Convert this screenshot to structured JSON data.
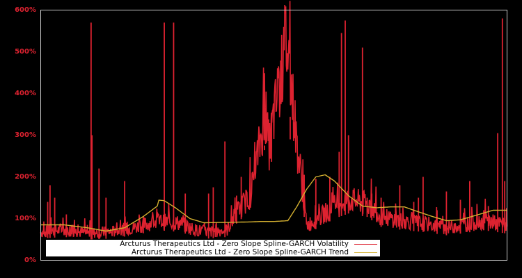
{
  "chart_data": {
    "type": "line",
    "title": "",
    "xlabel": "",
    "ylabel": "",
    "ylim": [
      0,
      600
    ],
    "yticks": [
      "0%",
      "100%",
      "200%",
      "300%",
      "400%",
      "500%",
      "600%"
    ],
    "grid": false,
    "legend_position": "bottom-left inside",
    "background": "#000000",
    "series": [
      {
        "name": "Arcturus Therapeutics Ltd - Zero Slope Spline-GARCH Volatility",
        "color": "#dd2230",
        "baseline": [
          [
            0,
            65
          ],
          [
            0.05,
            70
          ],
          [
            0.1,
            62
          ],
          [
            0.15,
            65
          ],
          [
            0.2,
            75
          ],
          [
            0.25,
            90
          ],
          [
            0.3,
            85
          ],
          [
            0.33,
            70
          ],
          [
            0.36,
            65
          ],
          [
            0.4,
            70
          ],
          [
            0.42,
            110
          ],
          [
            0.45,
            150
          ],
          [
            0.47,
            270
          ],
          [
            0.48,
            330
          ],
          [
            0.49,
            260
          ],
          [
            0.5,
            330
          ],
          [
            0.52,
            450
          ],
          [
            0.525,
            515
          ],
          [
            0.535,
            430
          ],
          [
            0.55,
            260
          ],
          [
            0.56,
            180
          ],
          [
            0.57,
            80
          ],
          [
            0.6,
            100
          ],
          [
            0.63,
            125
          ],
          [
            0.66,
            140
          ],
          [
            0.7,
            130
          ],
          [
            0.73,
            100
          ],
          [
            0.78,
            90
          ],
          [
            0.82,
            85
          ],
          [
            0.87,
            75
          ],
          [
            0.9,
            80
          ],
          [
            0.95,
            90
          ],
          [
            1,
            80
          ]
        ],
        "spikes": [
          [
            0.015,
            140
          ],
          [
            0.02,
            180
          ],
          [
            0.03,
            150
          ],
          [
            0.055,
            110
          ],
          [
            0.11,
            300
          ],
          [
            0.108,
            570
          ],
          [
            0.125,
            220
          ],
          [
            0.14,
            150
          ],
          [
            0.18,
            190
          ],
          [
            0.22,
            105
          ],
          [
            0.265,
            570
          ],
          [
            0.285,
            570
          ],
          [
            0.31,
            160
          ],
          [
            0.36,
            160
          ],
          [
            0.37,
            175
          ],
          [
            0.395,
            285
          ],
          [
            0.42,
            155
          ],
          [
            0.43,
            200
          ],
          [
            0.48,
            275
          ],
          [
            0.495,
            345
          ],
          [
            0.535,
            290
          ],
          [
            0.565,
            205
          ],
          [
            0.59,
            195
          ],
          [
            0.62,
            200
          ],
          [
            0.64,
            260
          ],
          [
            0.653,
            575
          ],
          [
            0.66,
            300
          ],
          [
            0.645,
            545
          ],
          [
            0.69,
            510
          ],
          [
            0.7,
            150
          ],
          [
            0.71,
            160
          ],
          [
            0.73,
            150
          ],
          [
            0.77,
            180
          ],
          [
            0.8,
            140
          ],
          [
            0.81,
            150
          ],
          [
            0.82,
            200
          ],
          [
            0.85,
            120
          ],
          [
            0.87,
            165
          ],
          [
            0.9,
            145
          ],
          [
            0.9,
            140
          ],
          [
            0.92,
            190
          ],
          [
            0.95,
            120
          ],
          [
            0.96,
            130
          ],
          [
            0.98,
            305
          ],
          [
            0.99,
            580
          ],
          [
            0.995,
            190
          ]
        ]
      },
      {
        "name": "Arcturus Therapeutics Ltd - Zero Slope Spline-GARCH Trend",
        "color": "#d4b030",
        "points": [
          [
            0,
            85
          ],
          [
            0.05,
            85
          ],
          [
            0.1,
            78
          ],
          [
            0.14,
            70
          ],
          [
            0.18,
            78
          ],
          [
            0.22,
            105
          ],
          [
            0.25,
            130
          ],
          [
            0.245,
            145
          ],
          [
            0.265,
            143
          ],
          [
            0.29,
            125
          ],
          [
            0.32,
            100
          ],
          [
            0.35,
            90
          ],
          [
            0.4,
            91
          ],
          [
            0.45,
            92
          ],
          [
            0.47,
            93
          ],
          [
            0.5,
            93
          ],
          [
            0.53,
            95
          ],
          [
            0.55,
            130
          ],
          [
            0.57,
            170
          ],
          [
            0.59,
            200
          ],
          [
            0.61,
            205
          ],
          [
            0.63,
            190
          ],
          [
            0.66,
            155
          ],
          [
            0.69,
            130
          ],
          [
            0.72,
            126
          ],
          [
            0.75,
            128
          ],
          [
            0.78,
            128
          ],
          [
            0.8,
            120
          ],
          [
            0.84,
            105
          ],
          [
            0.87,
            95
          ],
          [
            0.9,
            97
          ],
          [
            0.94,
            110
          ],
          [
            0.97,
            120
          ],
          [
            1,
            120
          ]
        ]
      }
    ]
  },
  "axis": {
    "yticks": [
      "600%",
      "500%",
      "400%",
      "300%",
      "200%",
      "100%",
      "0%"
    ]
  },
  "legend": {
    "volatility_label": "Arcturus Therapeutics Ltd - Zero Slope Spline-GARCH Volatility",
    "trend_label": "Arcturus Therapeutics Ltd - Zero Slope Spline-GARCH Trend",
    "volatility_color": "#dd2230",
    "trend_color": "#d4b030"
  }
}
